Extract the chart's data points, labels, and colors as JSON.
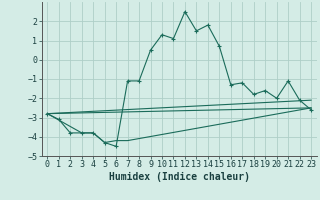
{
  "xlabel": "Humidex (Indice chaleur)",
  "background_color": "#d4ece6",
  "grid_color": "#aecfc8",
  "line_color": "#1a6b5a",
  "xlim": [
    -0.5,
    23.5
  ],
  "ylim": [
    -5,
    3
  ],
  "yticks": [
    -5,
    -4,
    -3,
    -2,
    -1,
    0,
    1,
    2
  ],
  "xticks": [
    0,
    1,
    2,
    3,
    4,
    5,
    6,
    7,
    8,
    9,
    10,
    11,
    12,
    13,
    14,
    15,
    16,
    17,
    18,
    19,
    20,
    21,
    22,
    23
  ],
  "line1_x": [
    0,
    1,
    2,
    3,
    4,
    5,
    6,
    7,
    8,
    9,
    10,
    11,
    12,
    13,
    14,
    15,
    16,
    17,
    18,
    19,
    20,
    21,
    22,
    23
  ],
  "line1_y": [
    -2.8,
    -3.1,
    -3.8,
    -3.8,
    -3.8,
    -4.3,
    -4.5,
    -1.1,
    -1.1,
    0.5,
    1.3,
    1.1,
    2.5,
    1.5,
    1.8,
    0.7,
    -1.3,
    -1.2,
    -1.8,
    -1.6,
    -2.0,
    -1.1,
    -2.1,
    -2.6
  ],
  "line2_x": [
    0,
    3,
    4,
    5,
    6,
    7,
    23
  ],
  "line2_y": [
    -2.8,
    -3.8,
    -3.8,
    -4.3,
    -4.2,
    -4.2,
    -2.5
  ],
  "line3_x": [
    0,
    23
  ],
  "line3_y": [
    -2.8,
    -2.5
  ],
  "line4_x": [
    0,
    23
  ],
  "line4_y": [
    -2.8,
    -2.1
  ],
  "markersize": 3,
  "linewidth": 0.8,
  "tick_fontsize": 6,
  "xlabel_fontsize": 7
}
